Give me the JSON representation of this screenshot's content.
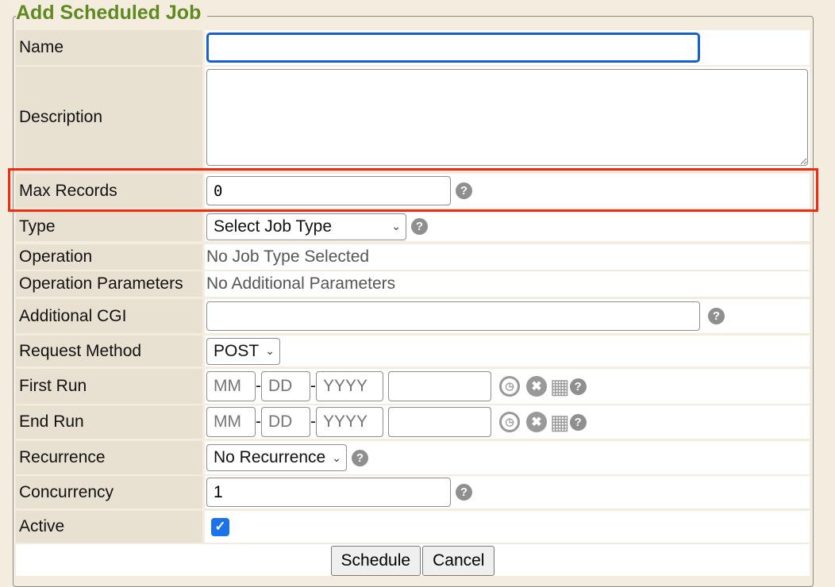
{
  "form": {
    "title": "Add Scheduled Job"
  },
  "fields": {
    "name": {
      "label": "Name",
      "value": ""
    },
    "description": {
      "label": "Description",
      "value": ""
    },
    "max_records": {
      "label": "Max Records",
      "value": "0"
    },
    "type": {
      "label": "Type",
      "selected": "Select Job Type"
    },
    "operation": {
      "label": "Operation",
      "value": "No Job Type Selected"
    },
    "operation_parameters": {
      "label": "Operation Parameters",
      "value": "No Additional Parameters"
    },
    "additional_cgi": {
      "label": "Additional CGI",
      "value": ""
    },
    "request_method": {
      "label": "Request Method",
      "selected": "POST"
    },
    "first_run": {
      "label": "First Run",
      "mm": "MM",
      "dd": "DD",
      "yyyy": "YYYY",
      "sep": "-"
    },
    "end_run": {
      "label": "End Run",
      "mm": "MM",
      "dd": "DD",
      "yyyy": "YYYY",
      "sep": "-"
    },
    "recurrence": {
      "label": "Recurrence",
      "selected": "No Recurrence"
    },
    "concurrency": {
      "label": "Concurrency",
      "value": "1"
    },
    "active": {
      "label": "Active",
      "checked": true
    }
  },
  "buttons": {
    "schedule": "Schedule",
    "cancel": "Cancel"
  },
  "help_glyph": "?",
  "colors": {
    "title": "#5e8a1f",
    "highlight": "#f42a0e",
    "checkbox": "#1a73e8",
    "focus": "#1560d0"
  }
}
